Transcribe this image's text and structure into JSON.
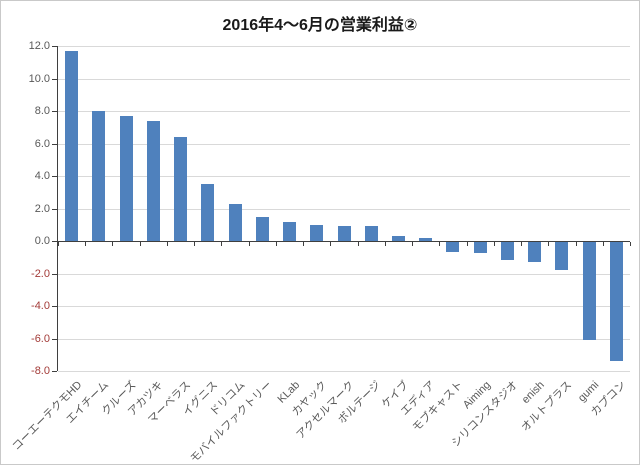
{
  "chart_data": {
    "type": "bar",
    "title": "2016年4～6月の営業利益②",
    "xlabel": "",
    "ylabel": "",
    "ylim": [
      -8,
      12
    ],
    "y_tick_labels": [
      "12.0",
      "10.0",
      "8.0",
      "6.0",
      "4.0",
      "2.0",
      "0.0",
      "-2.0",
      "-4.0",
      "-6.0",
      "-8.0"
    ],
    "grid": true,
    "legend": false,
    "categories": [
      "コーエーテクモHD",
      "エイチーム",
      "クルーズ",
      "アカツキ",
      "マーベラス",
      "イグニス",
      "ドリコム",
      "モバイルファクトリー",
      "KLab",
      "カヤック",
      "アクセルマーク",
      "ボルテージ",
      "ケイブ",
      "エディア",
      "モブキャスト",
      "Aiming",
      "シリコンスタジオ",
      "enish",
      "オルトプラス",
      "gumi",
      "カプコン"
    ],
    "values": [
      11.7,
      8.0,
      7.7,
      7.4,
      6.4,
      3.5,
      2.3,
      1.5,
      1.2,
      1.0,
      0.9,
      0.9,
      0.3,
      0.2,
      -0.6,
      -0.7,
      -1.1,
      -1.2,
      -1.7,
      -6.0,
      -7.3
    ],
    "colors": {
      "bar": "#4f81bd",
      "gridline": "#d9d9d9",
      "axis": "#3f3f3f",
      "tick_label": "#595959",
      "negative_tick_label": "#a33b38",
      "title": "#1a1a1a"
    }
  }
}
